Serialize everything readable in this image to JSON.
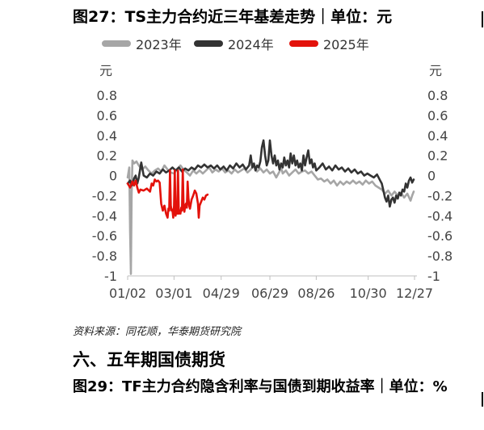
{
  "figure_title": "图27：TS主力合约近三年基差走势｜单位：元",
  "source_note": "资料来源：同花顺，华泰期货研究院",
  "section_heading": "六、五年期国债期货",
  "next_figure_title": "图29：TF主力合约隐含利率与国债到期收益率｜单位：%",
  "chart_data": {
    "type": "line",
    "title": "图27：TS主力合约近三年基差走势｜单位：元",
    "y_unit_left": "元",
    "y_unit_right": "元",
    "ylim": [
      -1,
      0.8
    ],
    "y_ticks": [
      0.8,
      0.6,
      0.4,
      0.2,
      0,
      -0.2,
      -0.4,
      -0.6,
      -0.8,
      -1
    ],
    "y_tick_labels": [
      "0.8",
      "0.6",
      "0.4",
      "0.2",
      "0",
      "-0.2",
      "-0.4",
      "-0.6",
      "-0.8",
      "-1"
    ],
    "x_tick_labels": [
      "01/02",
      "03/01",
      "04/29",
      "06/29",
      "08/26",
      "10/30",
      "12/27"
    ],
    "x_tick_days": [
      0,
      58,
      117,
      178,
      236,
      301,
      359
    ],
    "xlim": [
      0,
      362
    ],
    "grid": false,
    "legend_position": "top",
    "series": [
      {
        "name": "2023年",
        "color": "#a6a6a6",
        "points": [
          [
            0,
            -0.02
          ],
          [
            2,
            0.08
          ],
          [
            3,
            -0.55
          ],
          [
            4,
            -0.98
          ],
          [
            5,
            -0.2
          ],
          [
            6,
            0.15
          ],
          [
            8,
            0.12
          ],
          [
            11,
            0.14
          ],
          [
            14,
            0.1
          ],
          [
            18,
            0.06
          ],
          [
            22,
            0.09
          ],
          [
            26,
            0.05
          ],
          [
            30,
            0.02
          ],
          [
            34,
            0.05
          ],
          [
            38,
            0.07
          ],
          [
            42,
            0.04
          ],
          [
            46,
            0.1
          ],
          [
            50,
            0.06
          ],
          [
            54,
            0.03
          ],
          [
            58,
            0.02
          ],
          [
            62,
            0.06
          ],
          [
            66,
            0.1
          ],
          [
            70,
            0.06
          ],
          [
            74,
            0.03
          ],
          [
            78,
            0.0
          ],
          [
            82,
            0.05
          ],
          [
            86,
            0.02
          ],
          [
            90,
            0.05
          ],
          [
            94,
            0.02
          ],
          [
            98,
            0.05
          ],
          [
            102,
            0.08
          ],
          [
            106,
            0.03
          ],
          [
            110,
            0.06
          ],
          [
            114,
            0.04
          ],
          [
            118,
            0.07
          ],
          [
            122,
            0.03
          ],
          [
            126,
            0.05
          ],
          [
            130,
            0.02
          ],
          [
            134,
            0.06
          ],
          [
            138,
            0.03
          ],
          [
            142,
            0.05
          ],
          [
            146,
            0.07
          ],
          [
            150,
            0.03
          ],
          [
            154,
            0.06
          ],
          [
            158,
            0.1
          ],
          [
            162,
            0.04
          ],
          [
            166,
            0.07
          ],
          [
            170,
            0.03
          ],
          [
            174,
            0.06
          ],
          [
            178,
            0.02
          ],
          [
            182,
            0.04
          ],
          [
            186,
            -0.02
          ],
          [
            190,
            0.04
          ],
          [
            192,
            0.08
          ],
          [
            194,
            0.02
          ],
          [
            198,
            0.05
          ],
          [
            202,
            0.0
          ],
          [
            206,
            0.03
          ],
          [
            210,
            0.06
          ],
          [
            214,
            0.02
          ],
          [
            218,
            0.04
          ],
          [
            222,
            0.05
          ],
          [
            226,
            0.02
          ],
          [
            230,
            0.04
          ],
          [
            234,
            0.0
          ],
          [
            238,
            -0.04
          ],
          [
            242,
            -0.03
          ],
          [
            246,
            -0.06
          ],
          [
            250,
            -0.04
          ],
          [
            254,
            -0.08
          ],
          [
            258,
            -0.05
          ],
          [
            262,
            -0.1
          ],
          [
            266,
            -0.06
          ],
          [
            270,
            -0.09
          ],
          [
            274,
            -0.06
          ],
          [
            278,
            -0.08
          ],
          [
            282,
            -0.05
          ],
          [
            286,
            -0.08
          ],
          [
            290,
            -0.06
          ],
          [
            294,
            -0.09
          ],
          [
            298,
            -0.05
          ],
          [
            302,
            -0.08
          ],
          [
            306,
            -0.06
          ],
          [
            310,
            -0.1
          ],
          [
            314,
            -0.12
          ],
          [
            318,
            -0.14
          ],
          [
            322,
            -0.18
          ],
          [
            326,
            -0.15
          ],
          [
            330,
            -0.2
          ],
          [
            334,
            -0.16
          ],
          [
            338,
            -0.2
          ],
          [
            342,
            -0.17
          ],
          [
            346,
            -0.22
          ],
          [
            350,
            -0.18
          ],
          [
            354,
            -0.25
          ],
          [
            356,
            -0.2
          ],
          [
            358,
            -0.16
          ]
        ]
      },
      {
        "name": "2024年",
        "color": "#333333",
        "points": [
          [
            0,
            -0.08
          ],
          [
            3,
            -0.05
          ],
          [
            5,
            -0.1
          ],
          [
            8,
            -0.03
          ],
          [
            10,
            0.0
          ],
          [
            12,
            -0.08
          ],
          [
            14,
            -0.02
          ],
          [
            17,
            0.13
          ],
          [
            20,
            0.0
          ],
          [
            24,
            -0.02
          ],
          [
            28,
            0.02
          ],
          [
            32,
            0.0
          ],
          [
            36,
            0.04
          ],
          [
            40,
            0.02
          ],
          [
            44,
            0.06
          ],
          [
            48,
            0.03
          ],
          [
            52,
            0.05
          ],
          [
            56,
            0.08
          ],
          [
            60,
            0.05
          ],
          [
            64,
            0.08
          ],
          [
            68,
            0.04
          ],
          [
            72,
            0.07
          ],
          [
            76,
            0.05
          ],
          [
            80,
            0.08
          ],
          [
            84,
            0.06
          ],
          [
            88,
            0.1
          ],
          [
            92,
            0.08
          ],
          [
            96,
            0.11
          ],
          [
            100,
            0.08
          ],
          [
            104,
            0.1
          ],
          [
            108,
            0.07
          ],
          [
            112,
            0.1
          ],
          [
            116,
            0.06
          ],
          [
            120,
            0.09
          ],
          [
            124,
            0.05
          ],
          [
            128,
            0.1
          ],
          [
            132,
            0.07
          ],
          [
            136,
            0.12
          ],
          [
            140,
            0.08
          ],
          [
            144,
            0.11
          ],
          [
            148,
            0.06
          ],
          [
            152,
            0.1
          ],
          [
            154,
            0.2
          ],
          [
            156,
            0.08
          ],
          [
            158,
            0.12
          ],
          [
            160,
            0.05
          ],
          [
            162,
            0.1
          ],
          [
            164,
            0.08
          ],
          [
            166,
            0.14
          ],
          [
            168,
            0.28
          ],
          [
            170,
            0.35
          ],
          [
            172,
            0.2
          ],
          [
            174,
            0.1
          ],
          [
            176,
            0.15
          ],
          [
            178,
            0.35
          ],
          [
            180,
            0.2
          ],
          [
            182,
            0.12
          ],
          [
            184,
            0.2
          ],
          [
            186,
            0.1
          ],
          [
            188,
            0.15
          ],
          [
            190,
            0.06
          ],
          [
            192,
            0.12
          ],
          [
            194,
            0.08
          ],
          [
            196,
            0.18
          ],
          [
            198,
            0.1
          ],
          [
            200,
            0.15
          ],
          [
            202,
            0.08
          ],
          [
            204,
            0.22
          ],
          [
            206,
            0.12
          ],
          [
            208,
            0.2
          ],
          [
            210,
            0.1
          ],
          [
            212,
            0.15
          ],
          [
            214,
            0.08
          ],
          [
            216,
            0.12
          ],
          [
            218,
            0.05
          ],
          [
            220,
            0.2
          ],
          [
            222,
            0.1
          ],
          [
            224,
            0.18
          ],
          [
            226,
            0.25
          ],
          [
            228,
            0.12
          ],
          [
            230,
            0.16
          ],
          [
            232,
            0.08
          ],
          [
            234,
            0.12
          ],
          [
            236,
            0.05
          ],
          [
            240,
            0.08
          ],
          [
            244,
            0.12
          ],
          [
            248,
            0.06
          ],
          [
            252,
            0.09
          ],
          [
            256,
            0.05
          ],
          [
            260,
            0.1
          ],
          [
            264,
            0.06
          ],
          [
            268,
            0.08
          ],
          [
            272,
            0.04
          ],
          [
            276,
            0.07
          ],
          [
            280,
            0.03
          ],
          [
            284,
            0.06
          ],
          [
            288,
            0.02
          ],
          [
            292,
            0.04
          ],
          [
            296,
            0.0
          ],
          [
            300,
            0.02
          ],
          [
            304,
            0.0
          ],
          [
            308,
            -0.02
          ],
          [
            312,
            0.01
          ],
          [
            316,
            -0.05
          ],
          [
            318,
            -0.08
          ],
          [
            320,
            -0.15
          ],
          [
            322,
            -0.22
          ],
          [
            324,
            -0.26
          ],
          [
            326,
            -0.2
          ],
          [
            328,
            -0.31
          ],
          [
            330,
            -0.24
          ],
          [
            332,
            -0.22
          ],
          [
            334,
            -0.27
          ],
          [
            336,
            -0.2
          ],
          [
            338,
            -0.23
          ],
          [
            340,
            -0.17
          ],
          [
            342,
            -0.2
          ],
          [
            344,
            -0.14
          ],
          [
            346,
            -0.16
          ],
          [
            348,
            -0.08
          ],
          [
            350,
            -0.12
          ],
          [
            352,
            -0.05
          ],
          [
            354,
            -0.02
          ],
          [
            356,
            -0.07
          ],
          [
            358,
            -0.04
          ]
        ]
      },
      {
        "name": "2025年",
        "color": "#e3120b",
        "points": [
          [
            0,
            -0.08
          ],
          [
            3,
            -0.12
          ],
          [
            6,
            -0.06
          ],
          [
            8,
            -0.1
          ],
          [
            10,
            -0.05
          ],
          [
            12,
            -0.12
          ],
          [
            14,
            -0.17
          ],
          [
            16,
            -0.14
          ],
          [
            20,
            -0.15
          ],
          [
            24,
            -0.13
          ],
          [
            28,
            -0.16
          ],
          [
            30,
            -0.08
          ],
          [
            32,
            -0.1
          ],
          [
            34,
            -0.04
          ],
          [
            36,
            -0.06
          ],
          [
            38,
            -0.05
          ],
          [
            40,
            -0.07
          ],
          [
            42,
            -0.28
          ],
          [
            44,
            -0.35
          ],
          [
            46,
            -0.3
          ],
          [
            48,
            -0.38
          ],
          [
            50,
            -0.42
          ],
          [
            51,
            -0.33
          ],
          [
            52,
            -0.35
          ],
          [
            53,
            0.05
          ],
          [
            54,
            -0.3
          ],
          [
            55,
            -0.35
          ],
          [
            56,
            -0.34
          ],
          [
            57,
            -0.42
          ],
          [
            58,
            -0.3
          ],
          [
            59,
            0.05
          ],
          [
            60,
            -0.4
          ],
          [
            61,
            -0.34
          ],
          [
            62,
            -0.38
          ],
          [
            63,
            0.05
          ],
          [
            64,
            -0.38
          ],
          [
            65,
            -0.35
          ],
          [
            66,
            -0.38
          ],
          [
            67,
            -0.32
          ],
          [
            68,
            -0.35
          ],
          [
            69,
            0.06
          ],
          [
            70,
            -0.3
          ],
          [
            71,
            -0.36
          ],
          [
            72,
            -0.3
          ],
          [
            73,
            -0.28
          ],
          [
            74,
            -0.32
          ],
          [
            75,
            -0.06
          ],
          [
            76,
            -0.22
          ],
          [
            77,
            -0.3
          ],
          [
            78,
            -0.33
          ],
          [
            80,
            -0.24
          ],
          [
            82,
            -0.2
          ],
          [
            84,
            -0.15
          ],
          [
            86,
            -0.18
          ],
          [
            88,
            -0.28
          ],
          [
            89,
            -0.42
          ],
          [
            90,
            -0.3
          ],
          [
            92,
            -0.26
          ],
          [
            94,
            -0.22
          ],
          [
            96,
            -0.24
          ],
          [
            98,
            -0.2
          ],
          [
            100,
            -0.19
          ]
        ]
      }
    ]
  }
}
